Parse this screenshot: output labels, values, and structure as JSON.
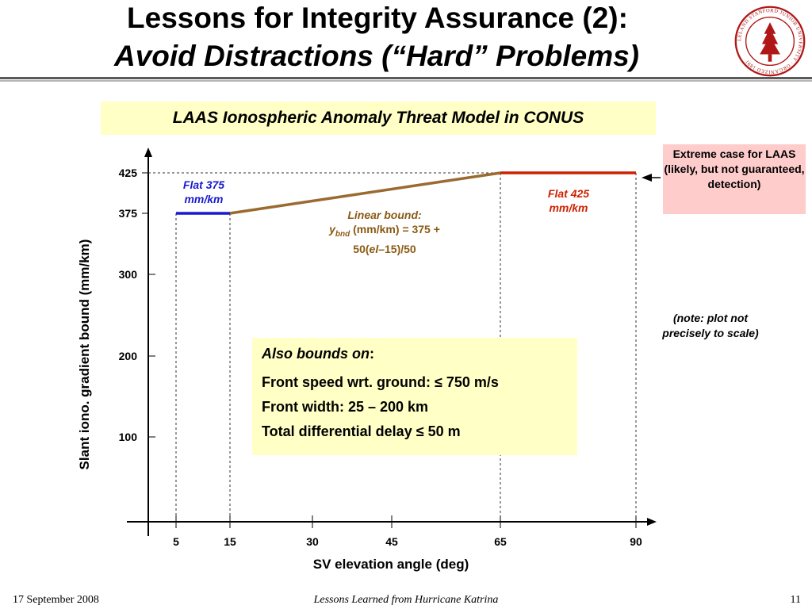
{
  "slide": {
    "title_line1": "Lessons for Integrity Assurance (2):",
    "title_line2": "Avoid Distractions (“Hard” Problems)",
    "seal_text": "LELAND STANFORD JUNIOR UNIVERSITY · ORGANIZED 1891",
    "footer": {
      "date": "17 September 2008",
      "center": "Lessons Learned from Hurricane Katrina",
      "page": "11"
    }
  },
  "colors": {
    "flat375": "#1a1acc",
    "flat425": "#cc2200",
    "linear": "#9a6a30",
    "box_yellow": "#ffffc6",
    "box_pink": "#ffcccc"
  },
  "chart_data": {
    "type": "line",
    "title": "LAAS Ionospheric Anomaly Threat Model in CONUS",
    "xlabel": "SV elevation angle (deg)",
    "ylabel": "Slant iono. gradient bound (mm/km)",
    "x_ticks": [
      "5",
      "15",
      "30",
      "45",
      "65",
      "90"
    ],
    "y_ticks": [
      "425",
      "375",
      "300",
      "200",
      "100"
    ],
    "series": [
      {
        "name": "Flat 375 mm/km",
        "x": [
          5,
          15
        ],
        "y": [
          375,
          375
        ],
        "color": "#1a1acc"
      },
      {
        "name": "Linear bound",
        "x": [
          15,
          65
        ],
        "y": [
          375,
          425
        ],
        "color": "#9a6a30"
      },
      {
        "name": "Flat 425 mm/km",
        "x": [
          65,
          90
        ],
        "y": [
          425,
          425
        ],
        "color": "#cc2200"
      }
    ],
    "annotations": {
      "flat375": "Flat 375 mm/km",
      "flat425": "Flat 425 mm/km",
      "linear_title": "Linear bound:",
      "linear_y": "y",
      "linear_sub": "bnd",
      "linear_eq1": "(mm/km) = 375 +",
      "linear_eq2_a": "50(",
      "linear_eq2_el": "el",
      "linear_eq2_b": "–15)/50",
      "extreme": "Extreme case for LAAS (likely, but not guaranteed, detection)",
      "note": "(note:  plot not precisely to scale)"
    },
    "also_bounds": {
      "heading": "Also bounds on",
      "colon": ":",
      "items": [
        "Front speed wrt. ground: ≤ 750 m/s",
        "Front width:  25 – 200 km",
        "Total differential delay ≤ 50 m"
      ]
    }
  }
}
